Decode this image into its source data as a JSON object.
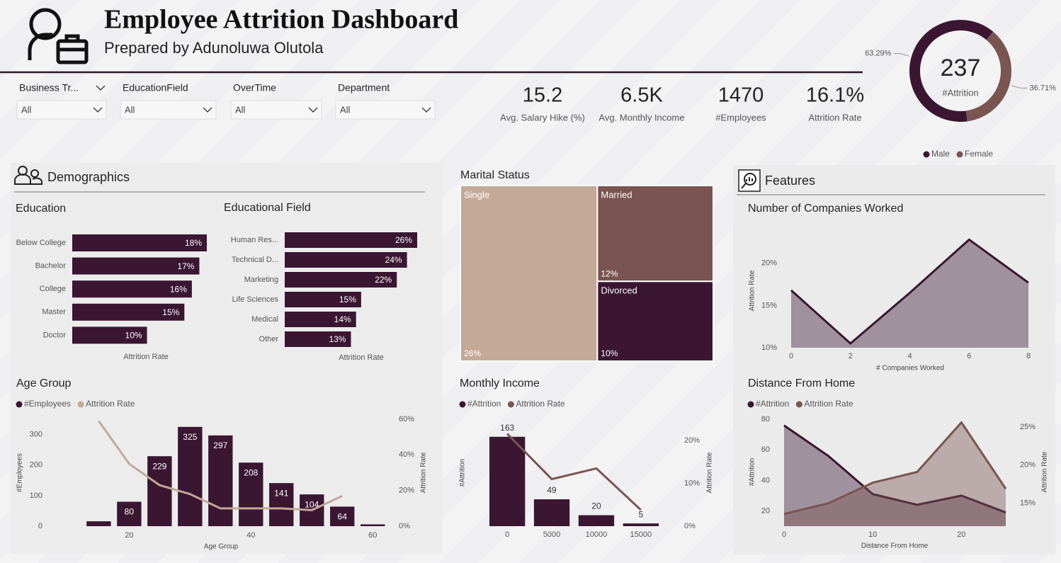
{
  "header": {
    "title": "Employee Attrition Dashboard",
    "subtitle": "Prepared by Adunoluwa Olutola"
  },
  "filters": [
    {
      "label": "Business Tr...",
      "value": "All"
    },
    {
      "label": "EducationField",
      "value": "All"
    },
    {
      "label": "OverTime",
      "value": "All"
    },
    {
      "label": "Department",
      "value": "All"
    }
  ],
  "kpis": [
    {
      "value": "15.2",
      "label": "Avg. Salary Hike (%)"
    },
    {
      "value": "6.5K",
      "label": "Avg. Monthly Income"
    },
    {
      "value": "1470",
      "label": "#Employees"
    },
    {
      "value": "16.1%",
      "label": "Attrition Rate"
    }
  ],
  "sections": {
    "demographics": "Demographics",
    "features": "Features"
  },
  "chart_data": [
    {
      "type": "donut",
      "center_value": 237,
      "center_label": "#Attrition",
      "categories": [
        "Male",
        "Female"
      ],
      "values": [
        63.29,
        36.71
      ],
      "value_labels": [
        "63.29%",
        "36.71%"
      ],
      "colors": [
        "#3a1632",
        "#7a5450"
      ],
      "legend": "bottom"
    },
    {
      "type": "hbar",
      "title": "Education",
      "categories": [
        "Below College",
        "Bachelor",
        "College",
        "Master",
        "Doctor"
      ],
      "values": [
        18,
        17,
        16,
        15,
        10
      ],
      "value_labels": [
        "18%",
        "17%",
        "16%",
        "15%",
        "10%"
      ],
      "x_label": "Attrition Rate",
      "color": "#3a1632"
    },
    {
      "type": "hbar",
      "title": "Educational Field",
      "categories": [
        "Human Res...",
        "Technical D...",
        "Marketing",
        "Life Sciences",
        "Medical",
        "Other"
      ],
      "values": [
        26,
        24,
        22,
        15,
        14,
        13
      ],
      "value_labels": [
        "26%",
        "24%",
        "22%",
        "15%",
        "14%",
        "13%"
      ],
      "x_label": "Attrition Rate",
      "color": "#3a1632"
    },
    {
      "type": "treemap",
      "title": "Marital Status",
      "categories": [
        "Single",
        "Married",
        "Divorced"
      ],
      "values": [
        26,
        12,
        10
      ],
      "value_labels": [
        "26%",
        "12%",
        "10%"
      ],
      "colors": [
        "#c4a898",
        "#7a5450",
        "#3a1632"
      ]
    },
    {
      "type": "combo",
      "title": "Age Group",
      "x": [
        15,
        20,
        25,
        30,
        35,
        40,
        45,
        50,
        55,
        60
      ],
      "series": [
        {
          "name": "#Employees",
          "type": "bar",
          "color": "#3a1632",
          "values": [
            16,
            80,
            229,
            325,
            297,
            208,
            141,
            104,
            64,
            6
          ]
        },
        {
          "name": "Attrition Rate",
          "type": "line",
          "axis": "y2",
          "color": "#c4a898",
          "values": [
            59,
            35,
            23,
            18,
            10,
            10,
            10,
            9,
            17,
            null
          ]
        }
      ],
      "xlim": [
        11,
        63
      ],
      "xticks": [
        20,
        40,
        60
      ],
      "ylim": [
        0,
        350
      ],
      "yticks": [
        0,
        100,
        200,
        300
      ],
      "y2lim": [
        0,
        60
      ],
      "y2ticks": [
        {
          "value": 0,
          "label": "0%"
        },
        {
          "value": 20,
          "label": "20%"
        },
        {
          "value": 40,
          "label": "40%"
        },
        {
          "value": 60,
          "label": "60%"
        }
      ],
      "x_label": "Age Group",
      "y_label": "#Employees",
      "y2_label": "Attrition Rate"
    },
    {
      "type": "combo",
      "title": "Monthly Income",
      "x": [
        0,
        5000,
        10000,
        15000
      ],
      "series": [
        {
          "name": "#Attrition",
          "type": "bar",
          "color": "#3a1632",
          "values": [
            163,
            49,
            20,
            5
          ]
        },
        {
          "name": "Attrition Rate",
          "type": "line",
          "axis": "y2",
          "color": "#7a5450",
          "values": [
            21.6,
            11,
            13.5,
            3.8
          ]
        }
      ],
      "xlim": [
        -2000,
        17000
      ],
      "xticks": [
        0,
        5000,
        10000,
        15000
      ],
      "ylim": [
        0,
        195
      ],
      "y2lim": [
        0,
        25
      ],
      "y2ticks": [
        {
          "value": 0,
          "label": "0%"
        },
        {
          "value": 10,
          "label": "10%"
        },
        {
          "value": 20,
          "label": "20%"
        }
      ],
      "y_label": "#Attrition",
      "y2_label": "Attrition Rate"
    },
    {
      "type": "area",
      "title": "Number of Companies Worked",
      "x": [
        0,
        2,
        4,
        6,
        8
      ],
      "series": [
        {
          "name": "Attrition Rate",
          "type": "area",
          "color": "#3a1632",
          "values": [
            16.8,
            10.5,
            16.5,
            22.8,
            17.7
          ]
        }
      ],
      "xlim": [
        0,
        8
      ],
      "xticks": [
        0,
        2,
        4,
        6,
        8
      ],
      "ylim": [
        10,
        23.5
      ],
      "yticks": [
        {
          "value": 10,
          "label": "10%"
        },
        {
          "value": 15,
          "label": "15%"
        },
        {
          "value": 20,
          "label": "20%"
        }
      ],
      "x_label": "# Companies Worked",
      "y_label": "Attrition Rate",
      "legend": false
    },
    {
      "type": "area",
      "title": "Distance From Home",
      "x": [
        0,
        5,
        10,
        15,
        20,
        25
      ],
      "series": [
        {
          "name": "#Attrition",
          "type": "area",
          "color": "#3a1632",
          "values": [
            76,
            56,
            31,
            24,
            30,
            19
          ]
        },
        {
          "name": "Attrition Rate",
          "type": "area",
          "axis": "y2",
          "color": "#7a5450",
          "values": [
            13.6,
            15,
            17.7,
            19.1,
            25.6,
            16.9
          ]
        }
      ],
      "xlim": [
        0,
        25
      ],
      "xticks": [
        0,
        10,
        20
      ],
      "ylim": [
        10,
        81
      ],
      "yticks": [
        20,
        40,
        60,
        80
      ],
      "y2lim": [
        12,
        26.2
      ],
      "y2ticks": [
        {
          "value": 15,
          "label": "15%"
        },
        {
          "value": 20,
          "label": "20%"
        },
        {
          "value": 25,
          "label": "25%"
        }
      ],
      "x_label": "Distance From Home",
      "y_label": "#Attrition",
      "y2_label": "Attrition Rate"
    }
  ]
}
